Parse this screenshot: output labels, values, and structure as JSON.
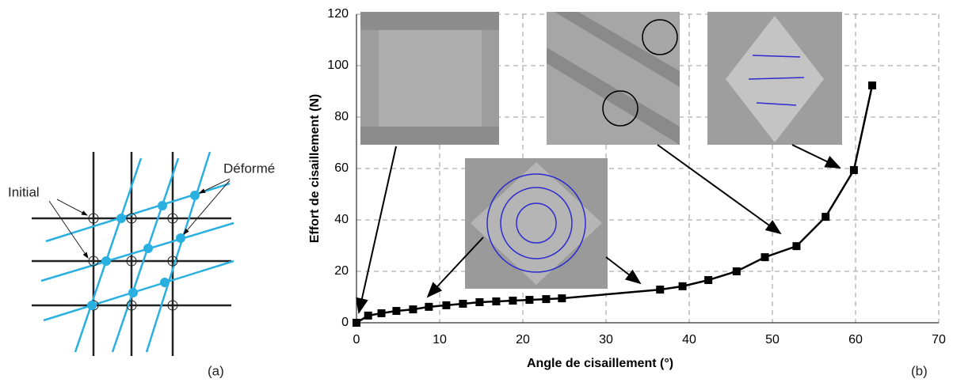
{
  "diagram": {
    "labels": [
      "Initial",
      "Déformé"
    ],
    "caption": "(a)"
  },
  "chart_data": {
    "type": "line",
    "x_label": "Angle de cisaillement (°)",
    "y_label": "Effort de cisaillement (N)",
    "caption": "(b)",
    "x": [
      0,
      1.4,
      3,
      4.8,
      6.8,
      8.7,
      10.8,
      12.8,
      14.8,
      16.8,
      18.8,
      20.8,
      22.8,
      24.7,
      36.5,
      39.2,
      42.3,
      45.7,
      49.1,
      52.9,
      56.4,
      59.8,
      62
    ],
    "series": [
      {
        "color": "#000000",
        "values": [
          0,
          2.8,
          3.7,
          4.6,
          5.2,
          6.2,
          6.8,
          7.4,
          8,
          8.3,
          8.6,
          8.9,
          9.2,
          9.5,
          12.9,
          14.2,
          16.6,
          20,
          25.5,
          29.8,
          41.2,
          59.4,
          92.3
        ]
      }
    ],
    "xlim": [
      0,
      70
    ],
    "xticks": [
      0,
      10,
      20,
      30,
      40,
      50,
      60,
      70
    ],
    "ylim": [
      0,
      120
    ],
    "yticks": [
      0,
      20,
      40,
      60,
      80,
      100,
      120
    ],
    "grid": true
  }
}
